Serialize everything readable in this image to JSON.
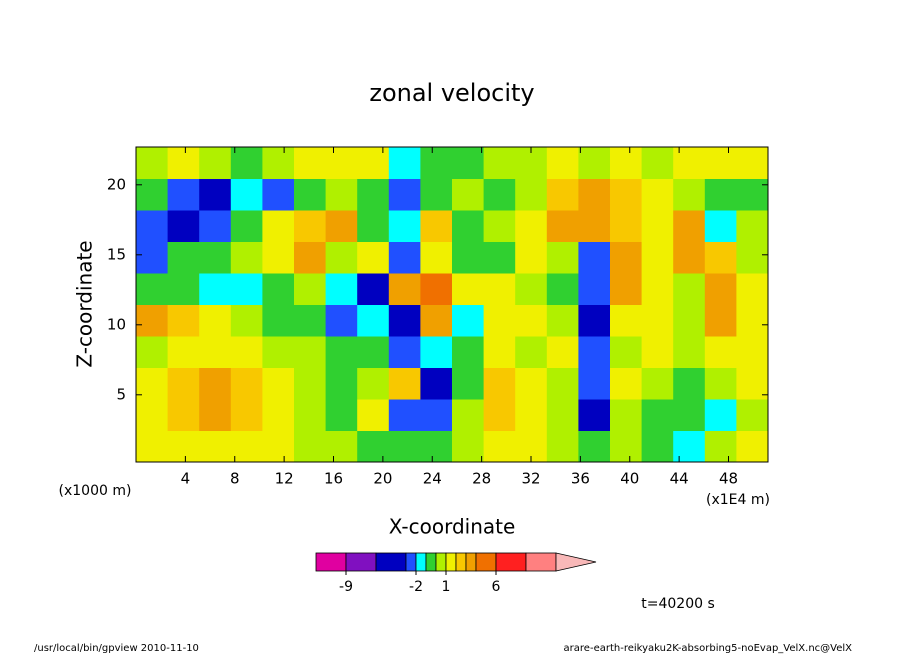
{
  "chart_data": {
    "type": "contour",
    "title": "zonal velocity",
    "xlabel": "X-coordinate",
    "ylabel": "Z-coordinate",
    "xunit": "(x1E4 m)",
    "yunit": "(x1000 m)",
    "annotation": "t=40200 s",
    "footer_left": "/usr/local/bin/gpview  2010-11-10",
    "footer_right": "arare-earth-reikyaku2K-absorbing5-noEvap_VelX.nc@VelX",
    "xlim": [
      0,
      51.2
    ],
    "ylim": [
      0.2,
      22.7
    ],
    "xticks": [
      4,
      8,
      12,
      16,
      20,
      24,
      28,
      32,
      36,
      40,
      44,
      48
    ],
    "yticks": [
      5,
      10,
      15,
      20
    ],
    "colorbar": {
      "levels": [
        -12,
        -9,
        -6,
        -3,
        -2,
        -1,
        0,
        1,
        2,
        3,
        4,
        6,
        9,
        12
      ],
      "colors": [
        "#e000a0",
        "#8010c0",
        "#0000c0",
        "#2050ff",
        "#00ffff",
        "#30d030",
        "#b0f000",
        "#f0f000",
        "#f8c800",
        "#f0a000",
        "#f07000",
        "#ff2020",
        "#ff8080",
        "#f8b8b8"
      ],
      "ticks": [
        -9,
        -2,
        1,
        6
      ]
    },
    "z": [
      [
        1.5,
        1.5,
        1.5,
        1.5,
        1.5,
        0.5,
        0.5,
        -0.5,
        -0.5,
        -0.5,
        0.5,
        1.5,
        1.5,
        0.5,
        -0.5,
        0.5,
        -0.5,
        -1.5,
        0.5,
        1.5
      ],
      [
        1.5,
        2.5,
        3.5,
        2.5,
        1.5,
        0.5,
        -0.5,
        1.5,
        -3,
        -2.5,
        0.5,
        2.5,
        1.5,
        0.5,
        -4,
        0.5,
        -0.5,
        -0.5,
        -1.5,
        0.5
      ],
      [
        1.5,
        2.5,
        3.5,
        2.5,
        1.5,
        0.5,
        -0.5,
        0.5,
        2.5,
        -4,
        -0.5,
        2.5,
        1.5,
        0.5,
        -3,
        1.5,
        0.5,
        -0.5,
        0.5,
        1.5
      ],
      [
        0.5,
        1.5,
        1.5,
        1.5,
        0.5,
        0.5,
        -0.5,
        -0.5,
        -3,
        -1.5,
        -0.5,
        1.5,
        0.5,
        1.5,
        -2.5,
        0.5,
        1.5,
        0.5,
        1.5,
        1.5
      ],
      [
        3.5,
        2.5,
        1.5,
        0.5,
        -0.5,
        -0.5,
        -2.5,
        -1.5,
        -4,
        3.5,
        -1.5,
        1.5,
        1.5,
        0.5,
        -4,
        1.5,
        1.5,
        0.5,
        3.5,
        1.5
      ],
      [
        -0.5,
        -0.5,
        -1.5,
        -1.5,
        -0.5,
        0.5,
        -1.5,
        -4,
        3.5,
        5,
        1.5,
        1.5,
        0.5,
        -0.5,
        -3,
        3.5,
        1.5,
        0.5,
        3.5,
        1.5
      ],
      [
        -3,
        -0.5,
        -0.5,
        0.5,
        1.5,
        3.5,
        0.5,
        1.5,
        -2.5,
        1.5,
        -0.5,
        -0.5,
        1.5,
        0.5,
        -2.5,
        3.5,
        1.5,
        3.5,
        2.5,
        0.5
      ],
      [
        -2.5,
        -4,
        -3,
        -0.5,
        1.5,
        2.5,
        3.5,
        -0.5,
        -1.5,
        2.5,
        -0.5,
        0.5,
        1.5,
        3.5,
        3.5,
        2.5,
        1.5,
        3.5,
        -1.5,
        0.5
      ],
      [
        -0.5,
        -2.5,
        -4,
        -1.5,
        -2.5,
        -0.5,
        0.5,
        -0.5,
        -2.5,
        -0.5,
        0.5,
        -0.5,
        0.5,
        2.5,
        3.5,
        2.5,
        1.5,
        0.5,
        -0.5,
        -0.5
      ],
      [
        0.5,
        1.5,
        0.5,
        -0.5,
        0.5,
        1.5,
        1.5,
        1.5,
        -1.5,
        -0.5,
        -0.5,
        0.5,
        0.5,
        1.5,
        0.5,
        1.5,
        0.5,
        1.5,
        1.5,
        1.5
      ]
    ]
  }
}
